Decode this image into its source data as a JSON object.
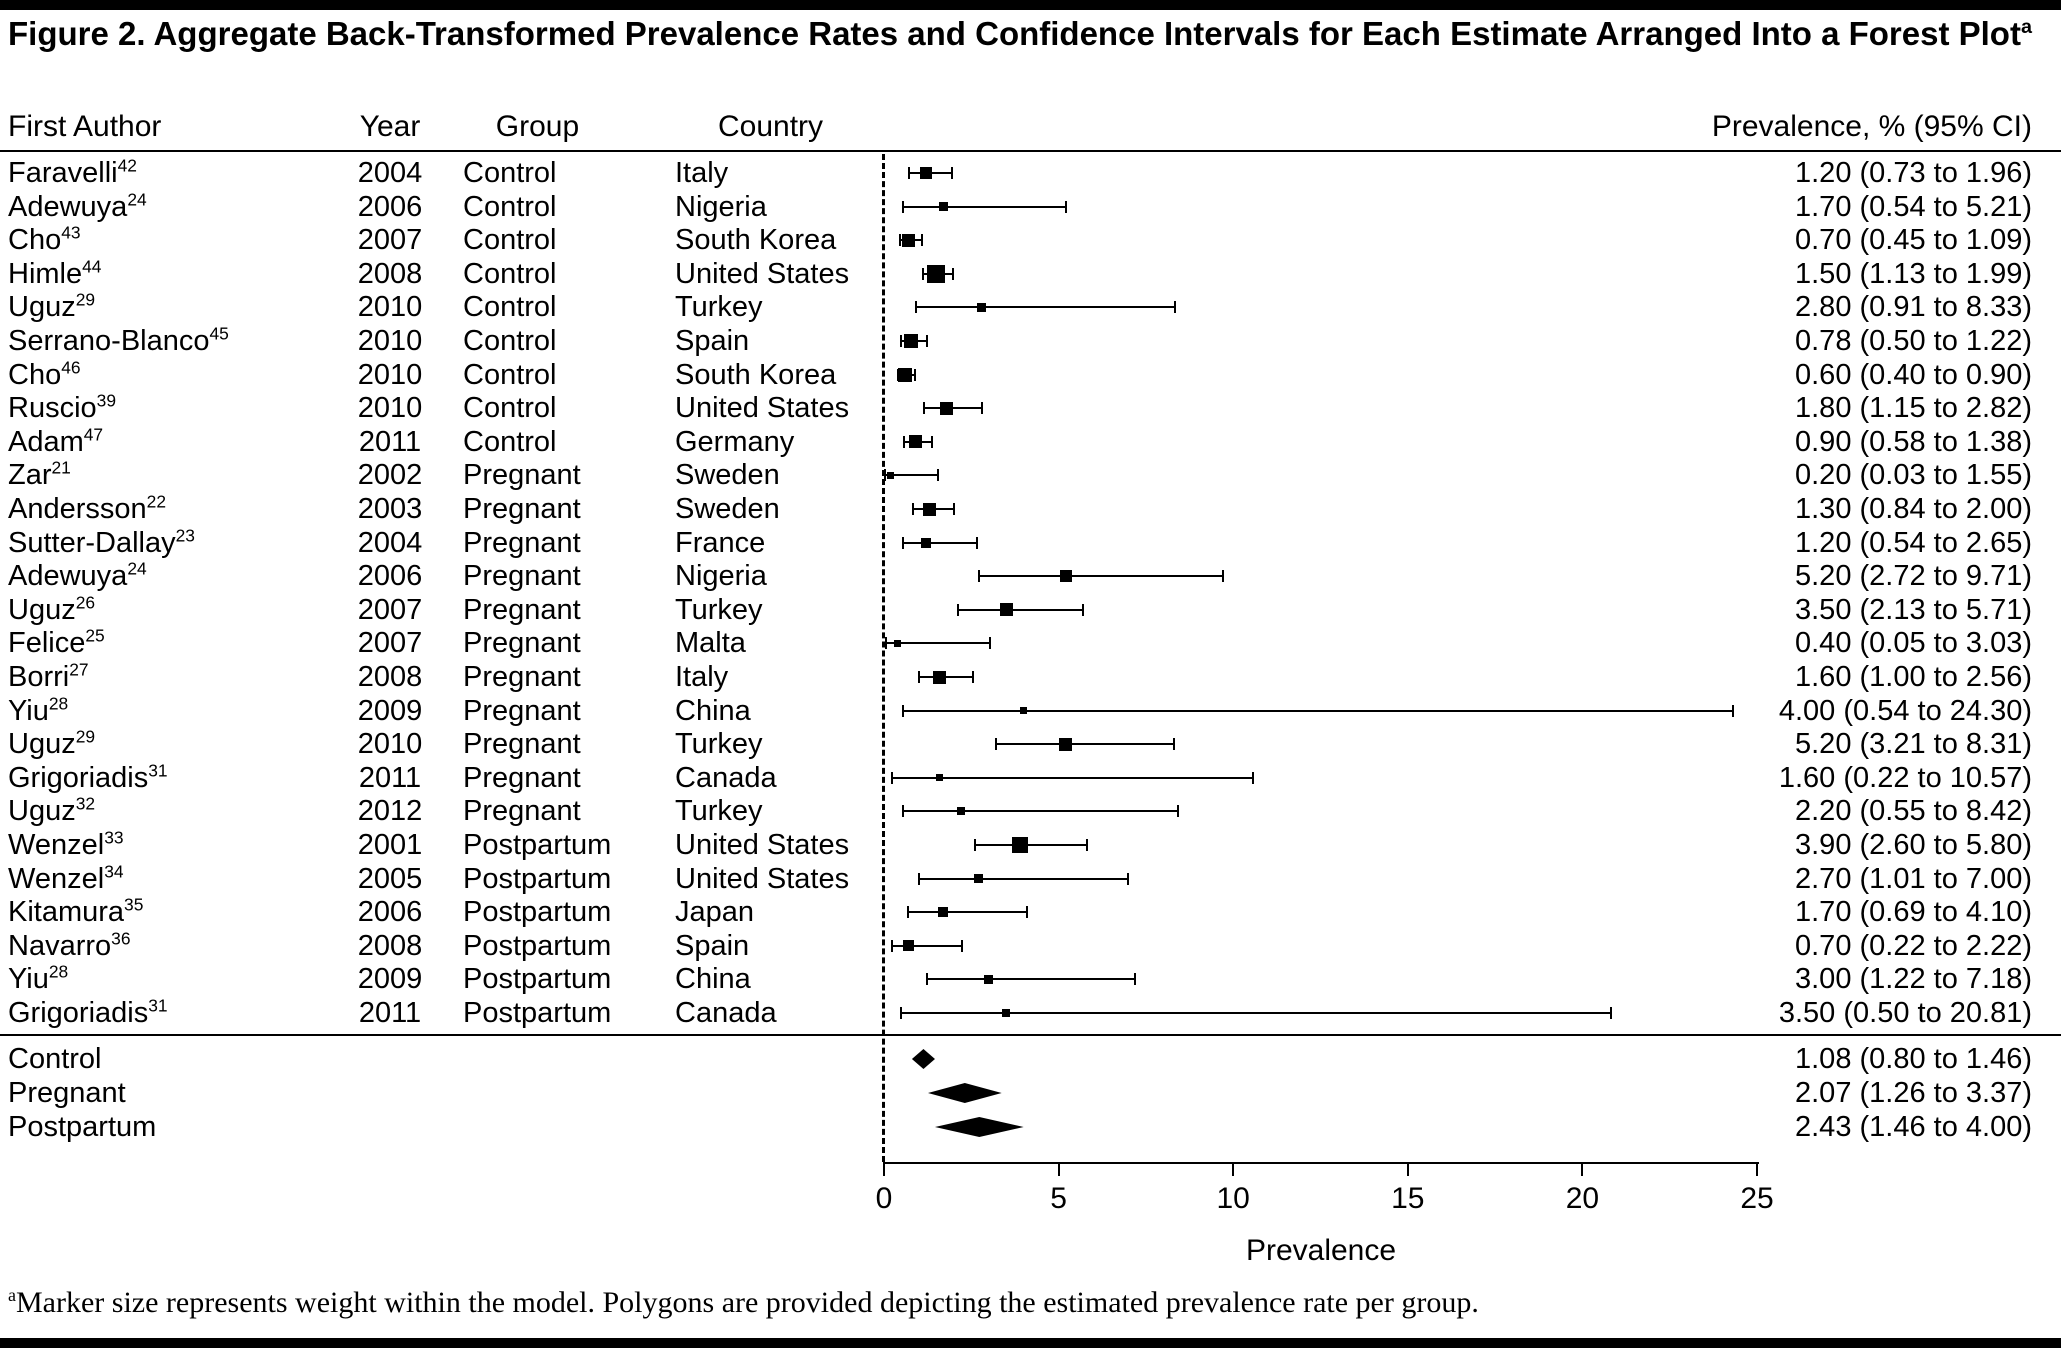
{
  "figure": {
    "title": "Figure 2. Aggregate Back-Transformed Prevalence Rates and Confidence Intervals for Each Estimate Arranged Into a Forest Plot",
    "title_sup": "a",
    "footnote_sup": "a",
    "footnote": "Marker size represents weight within the model. Polygons are provided depicting the estimated prevalence rate per group."
  },
  "columns": {
    "author": "First Author",
    "year": "Year",
    "group": "Group",
    "country": "Country",
    "prevalence": "Prevalence, % (95% CI)"
  },
  "axis": {
    "label": "Prevalence",
    "min": 0,
    "max": 25,
    "ticks": [
      0,
      5,
      10,
      15,
      20,
      25
    ]
  },
  "chart_data": {
    "type": "scatter",
    "subtype": "forest-plot",
    "xlabel": "Prevalence",
    "xlim": [
      0,
      25
    ],
    "reference_line_x": 0,
    "studies": [
      {
        "author": "Faravelli",
        "ref": "42",
        "year": "2004",
        "group": "Control",
        "country": "Italy",
        "est": 1.2,
        "lo": 0.73,
        "hi": 1.96,
        "label": "1.20 (0.73 to 1.96)",
        "size": 12
      },
      {
        "author": "Adewuya",
        "ref": "24",
        "year": "2006",
        "group": "Control",
        "country": "Nigeria",
        "est": 1.7,
        "lo": 0.54,
        "hi": 5.21,
        "label": "1.70 (0.54 to 5.21)",
        "size": 9
      },
      {
        "author": "Cho",
        "ref": "43",
        "year": "2007",
        "group": "Control",
        "country": "South Korea",
        "est": 0.7,
        "lo": 0.45,
        "hi": 1.09,
        "label": "0.70 (0.45 to 1.09)",
        "size": 13
      },
      {
        "author": "Himle",
        "ref": "44",
        "year": "2008",
        "group": "Control",
        "country": "United States",
        "est": 1.5,
        "lo": 1.13,
        "hi": 1.99,
        "label": "1.50 (1.13 to 1.99)",
        "size": 18
      },
      {
        "author": "Uguz",
        "ref": "29",
        "year": "2010",
        "group": "Control",
        "country": "Turkey",
        "est": 2.8,
        "lo": 0.91,
        "hi": 8.33,
        "label": "2.80 (0.91 to 8.33)",
        "size": 9
      },
      {
        "author": "Serrano-Blanco",
        "ref": "45",
        "year": "2010",
        "group": "Control",
        "country": "Spain",
        "est": 0.78,
        "lo": 0.5,
        "hi": 1.22,
        "label": "0.78 (0.50 to 1.22)",
        "size": 14
      },
      {
        "author": "Cho",
        "ref": "46",
        "year": "2010",
        "group": "Control",
        "country": "South Korea",
        "est": 0.6,
        "lo": 0.4,
        "hi": 0.9,
        "label": "0.60 (0.40 to 0.90)",
        "size": 14
      },
      {
        "author": "Ruscio",
        "ref": "39",
        "year": "2010",
        "group": "Control",
        "country": "United States",
        "est": 1.8,
        "lo": 1.15,
        "hi": 2.82,
        "label": "1.80 (1.15 to 2.82)",
        "size": 13
      },
      {
        "author": "Adam",
        "ref": "47",
        "year": "2011",
        "group": "Control",
        "country": "Germany",
        "est": 0.9,
        "lo": 0.58,
        "hi": 1.38,
        "label": "0.90 (0.58 to 1.38)",
        "size": 13
      },
      {
        "author": "Zar",
        "ref": "21",
        "year": "2002",
        "group": "Pregnant",
        "country": "Sweden",
        "est": 0.2,
        "lo": 0.03,
        "hi": 1.55,
        "label": "0.20 (0.03 to 1.55)",
        "size": 7
      },
      {
        "author": "Andersson",
        "ref": "22",
        "year": "2003",
        "group": "Pregnant",
        "country": "Sweden",
        "est": 1.3,
        "lo": 0.84,
        "hi": 2.0,
        "label": "1.30 (0.84 to 2.00)",
        "size": 13
      },
      {
        "author": "Sutter-Dallay",
        "ref": "23",
        "year": "2004",
        "group": "Pregnant",
        "country": "France",
        "est": 1.2,
        "lo": 0.54,
        "hi": 2.65,
        "label": "1.20 (0.54 to 2.65)",
        "size": 10
      },
      {
        "author": "Adewuya",
        "ref": "24",
        "year": "2006",
        "group": "Pregnant",
        "country": "Nigeria",
        "est": 5.2,
        "lo": 2.72,
        "hi": 9.71,
        "label": "5.20 (2.72 to 9.71)",
        "size": 12
      },
      {
        "author": "Uguz",
        "ref": "26",
        "year": "2007",
        "group": "Pregnant",
        "country": "Turkey",
        "est": 3.5,
        "lo": 2.13,
        "hi": 5.71,
        "label": "3.50 (2.13 to 5.71)",
        "size": 13
      },
      {
        "author": "Felice",
        "ref": "25",
        "year": "2007",
        "group": "Pregnant",
        "country": "Malta",
        "est": 0.4,
        "lo": 0.05,
        "hi": 3.03,
        "label": "0.40 (0.05 to 3.03)",
        "size": 7
      },
      {
        "author": "Borri",
        "ref": "27",
        "year": "2008",
        "group": "Pregnant",
        "country": "Italy",
        "est": 1.6,
        "lo": 1.0,
        "hi": 2.56,
        "label": "1.60 (1.00 to 2.56)",
        "size": 13
      },
      {
        "author": "Yiu",
        "ref": "28",
        "year": "2009",
        "group": "Pregnant",
        "country": "China",
        "est": 4.0,
        "lo": 0.54,
        "hi": 24.3,
        "label": "4.00 (0.54 to 24.30)",
        "size": 7
      },
      {
        "author": "Uguz",
        "ref": "29",
        "year": "2010",
        "group": "Pregnant",
        "country": "Turkey",
        "est": 5.2,
        "lo": 3.21,
        "hi": 8.31,
        "label": "5.20 (3.21 to 8.31)",
        "size": 13
      },
      {
        "author": "Grigoriadis",
        "ref": "31",
        "year": "2011",
        "group": "Pregnant",
        "country": "Canada",
        "est": 1.6,
        "lo": 0.22,
        "hi": 10.57,
        "label": "1.60 (0.22 to 10.57)",
        "size": 7
      },
      {
        "author": "Uguz",
        "ref": "32",
        "year": "2012",
        "group": "Pregnant",
        "country": "Turkey",
        "est": 2.2,
        "lo": 0.55,
        "hi": 8.42,
        "label": "2.20 (0.55 to 8.42)",
        "size": 8
      },
      {
        "author": "Wenzel",
        "ref": "33",
        "year": "2001",
        "group": "Postpartum",
        "country": "United States",
        "est": 3.9,
        "lo": 2.6,
        "hi": 5.8,
        "label": "3.90 (2.60 to 5.80)",
        "size": 16
      },
      {
        "author": "Wenzel",
        "ref": "34",
        "year": "2005",
        "group": "Postpartum",
        "country": "United States",
        "est": 2.7,
        "lo": 1.01,
        "hi": 7.0,
        "label": "2.70 (1.01 to 7.00)",
        "size": 9
      },
      {
        "author": "Kitamura",
        "ref": "35",
        "year": "2006",
        "group": "Postpartum",
        "country": "Japan",
        "est": 1.7,
        "lo": 0.69,
        "hi": 4.1,
        "label": "1.70 (0.69 to 4.10)",
        "size": 10
      },
      {
        "author": "Navarro",
        "ref": "36",
        "year": "2008",
        "group": "Postpartum",
        "country": "Spain",
        "est": 0.7,
        "lo": 0.22,
        "hi": 2.22,
        "label": "0.70 (0.22 to 2.22)",
        "size": 11
      },
      {
        "author": "Yiu",
        "ref": "28",
        "year": "2009",
        "group": "Postpartum",
        "country": "China",
        "est": 3.0,
        "lo": 1.22,
        "hi": 7.18,
        "label": "3.00 (1.22 to 7.18)",
        "size": 9
      },
      {
        "author": "Grigoriadis",
        "ref": "31",
        "year": "2011",
        "group": "Postpartum",
        "country": "Canada",
        "est": 3.5,
        "lo": 0.5,
        "hi": 20.81,
        "label": "3.50 (0.50 to 20.81)",
        "size": 8
      }
    ],
    "summaries": [
      {
        "group": "Control",
        "est": 1.08,
        "lo": 0.8,
        "hi": 1.46,
        "label": "1.08 (0.80 to 1.46)"
      },
      {
        "group": "Pregnant",
        "est": 2.07,
        "lo": 1.26,
        "hi": 3.37,
        "label": "2.07 (1.26 to 3.37)"
      },
      {
        "group": "Postpartum",
        "est": 2.43,
        "lo": 1.46,
        "hi": 4.0,
        "label": "2.43 (1.46 to 4.00)"
      }
    ]
  }
}
